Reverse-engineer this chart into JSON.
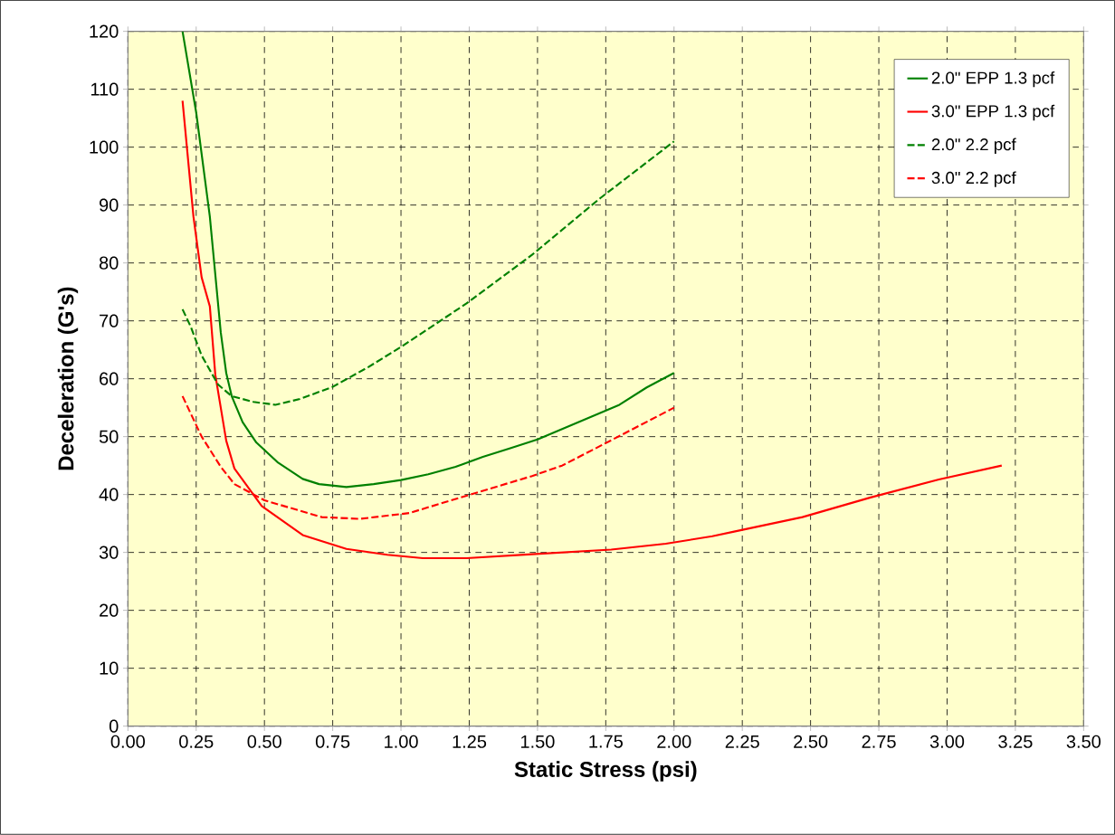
{
  "chart_data": {
    "type": "line",
    "xlabel": "Static Stress (psi)",
    "ylabel": "Deceleration (G's)",
    "xlim": [
      0,
      3.5
    ],
    "ylim": [
      0,
      120
    ],
    "xticks": [
      {
        "value": 0,
        "label": "0.00"
      },
      {
        "value": 0.25,
        "label": "0.25"
      },
      {
        "value": 0.5,
        "label": "0.50"
      },
      {
        "value": 0.75,
        "label": "0.75"
      },
      {
        "value": 1,
        "label": "1.00"
      },
      {
        "value": 1.25,
        "label": "1.25"
      },
      {
        "value": 1.5,
        "label": "1.50"
      },
      {
        "value": 1.75,
        "label": "1.75"
      },
      {
        "value": 2,
        "label": "2.00"
      },
      {
        "value": 2.25,
        "label": "2.25"
      },
      {
        "value": 2.5,
        "label": "2.50"
      },
      {
        "value": 2.75,
        "label": "2.75"
      },
      {
        "value": 3,
        "label": "3.00"
      },
      {
        "value": 3.25,
        "label": "3.25"
      },
      {
        "value": 3.5,
        "label": "3.50"
      }
    ],
    "yticks": [
      0,
      10,
      20,
      30,
      40,
      50,
      60,
      70,
      80,
      90,
      100,
      110,
      120
    ],
    "grid": true,
    "legend": "top right",
    "series": [
      {
        "name": "2.0\" EPP 1.3 pcf",
        "color": "#008000",
        "line_style": "solid",
        "x": [
          0.2,
          0.25,
          0.3,
          0.32,
          0.34,
          0.36,
          0.38,
          0.42,
          0.47,
          0.55,
          0.64,
          0.7,
          0.8,
          0.9,
          1.0,
          1.1,
          1.2,
          1.3,
          1.4,
          1.5,
          1.6,
          1.7,
          1.8,
          1.9,
          2.0
        ],
        "values": [
          120,
          106,
          88,
          78,
          68,
          61,
          57,
          52.5,
          49,
          45.5,
          42.7,
          41.8,
          41.3,
          41.8,
          42.5,
          43.5,
          44.8,
          46.5,
          48,
          49.5,
          51.5,
          53.5,
          55.5,
          58.5,
          61
        ]
      },
      {
        "name": "3.0\" EPP 1.3 pcf",
        "color": "#ff0000",
        "line_style": "solid",
        "x": [
          0.2,
          0.24,
          0.27,
          0.3,
          0.32,
          0.36,
          0.39,
          0.49,
          0.64,
          0.8,
          0.95,
          1.08,
          1.24,
          1.48,
          1.77,
          1.97,
          2.14,
          2.22,
          2.47,
          2.72,
          2.97,
          3.2
        ],
        "values": [
          108,
          88,
          77.5,
          72.5,
          60.7,
          49.3,
          44.5,
          38,
          33,
          30.6,
          29.6,
          29,
          29,
          29.7,
          30.5,
          31.5,
          32.8,
          33.6,
          36.1,
          39.5,
          42.6,
          45
        ]
      },
      {
        "name": "2.0\" 2.2 pcf",
        "color": "#008000",
        "line_style": "dashed",
        "x": [
          0.2,
          0.23,
          0.27,
          0.33,
          0.38,
          0.46,
          0.54,
          0.63,
          0.75,
          0.88,
          1.0,
          1.24,
          1.48,
          1.73,
          2.0
        ],
        "values": [
          72,
          69,
          64,
          59,
          57,
          56,
          55.5,
          56.5,
          58.6,
          62,
          65.5,
          73,
          81.4,
          91.2,
          101
        ]
      },
      {
        "name": "3.0\" 2.2 pcf",
        "color": "#ff0000",
        "line_style": "dashed",
        "x": [
          0.2,
          0.27,
          0.34,
          0.39,
          0.5,
          0.71,
          0.85,
          1.03,
          1.24,
          1.48,
          1.59,
          1.73,
          2.0
        ],
        "values": [
          57,
          50,
          44.8,
          41.8,
          39,
          36.1,
          35.8,
          36.8,
          39.8,
          43.2,
          45,
          48.4,
          55
        ]
      }
    ]
  }
}
